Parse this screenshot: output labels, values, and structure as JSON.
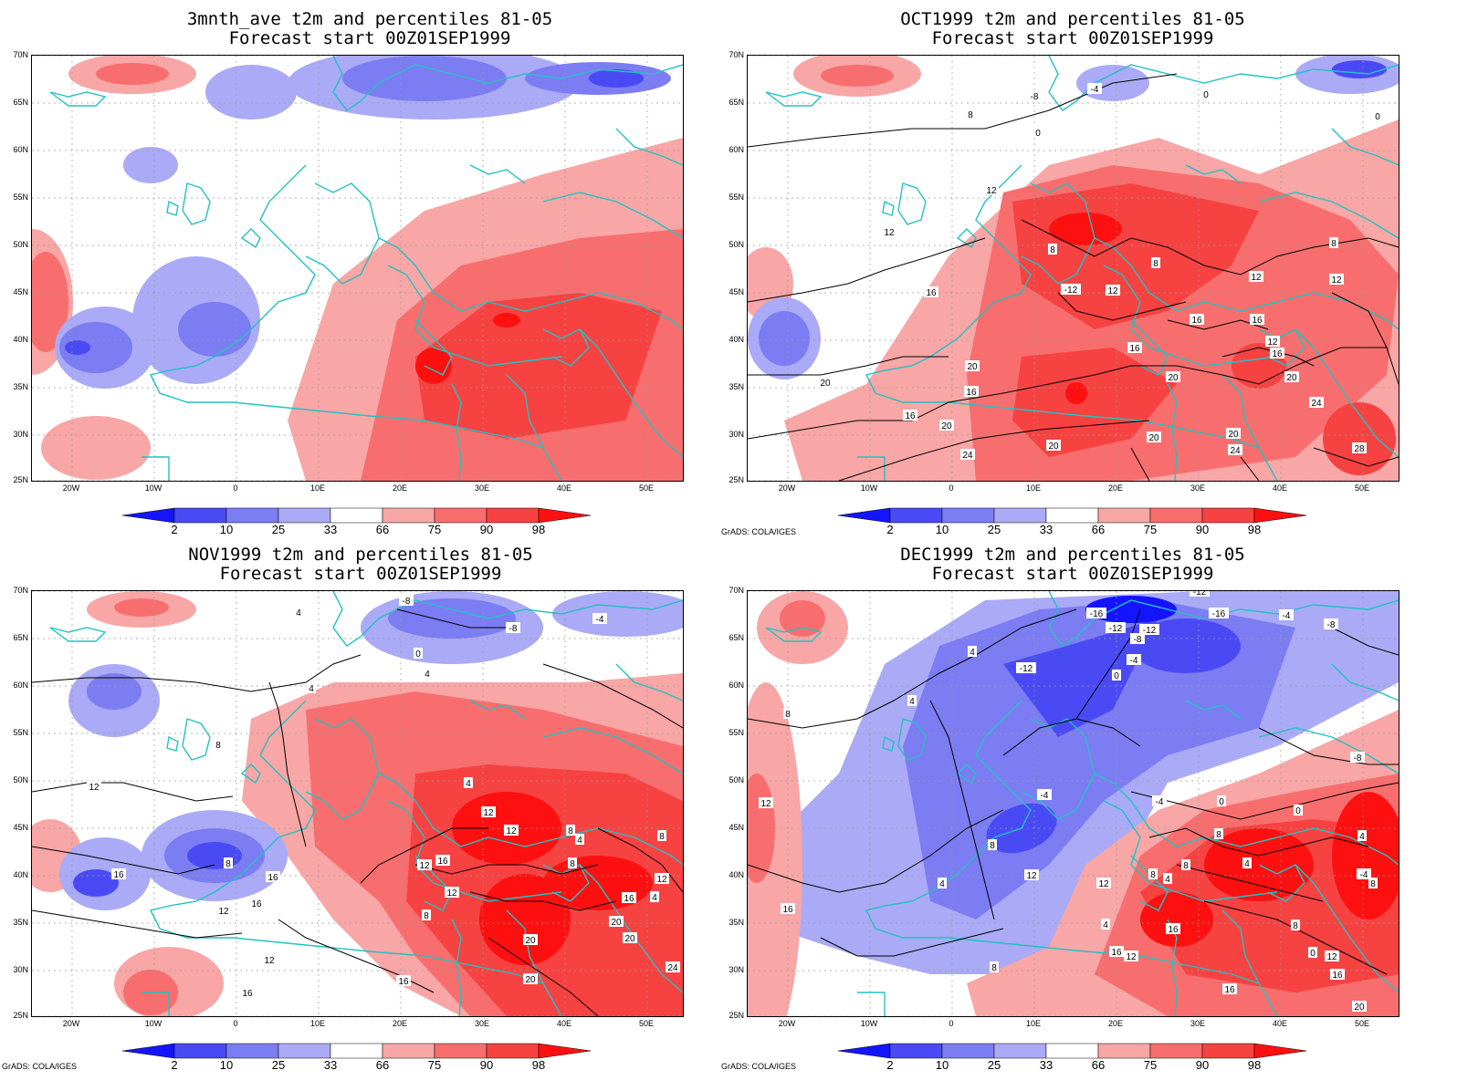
{
  "panels": [
    {
      "title1": "3mnth_ave t2m and percentiles 81-05",
      "title2": "Forecast start 00Z01SEP1999",
      "credit": ""
    },
    {
      "title1": "OCT1999 t2m and percentiles 81-05",
      "title2": "Forecast start 00Z01SEP1999",
      "credit": "GrADS: COLA/IGES"
    },
    {
      "title1": "NOV1999 t2m and percentiles 81-05",
      "title2": "Forecast start 00Z01SEP1999",
      "credit": "GrADS: COLA/IGES"
    },
    {
      "title1": "DEC1999 t2m and percentiles 81-05",
      "title2": "Forecast start 00Z01SEP1999",
      "credit": "GrADS: COLA/IGES"
    }
  ],
  "lat_labels": [
    "70N",
    "65N",
    "60N",
    "55N",
    "50N",
    "45N",
    "40N",
    "35N",
    "30N",
    "25N"
  ],
  "lon_labels": [
    "20W",
    "10W",
    "0",
    "10E",
    "20E",
    "30E",
    "40E",
    "50E"
  ],
  "colorbar": {
    "labels": [
      "2",
      "10",
      "25",
      "33",
      "66",
      "75",
      "90",
      "98"
    ],
    "colors": [
      "#1414ff",
      "#4a4af5",
      "#7c7cf3",
      "#aaaaf6",
      "#ffffff",
      "#f8a6a6",
      "#f86e6e",
      "#f74242",
      "#ff1010"
    ]
  },
  "map_colors": {
    "coast": "#22c2c2",
    "grid": "#9a9a9a",
    "contour": "#000000"
  }
}
